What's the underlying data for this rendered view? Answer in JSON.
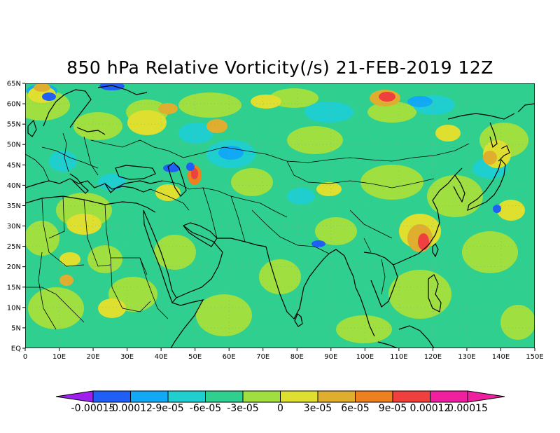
{
  "title": "850 hPa Relative Vorticity(/s) 21-FEB-2019 12Z",
  "map": {
    "projection": "lat-lon",
    "lon_range": [
      0,
      150
    ],
    "lat_range": [
      0,
      65
    ],
    "background_color": "#2fcf8f",
    "lat_ticks": [
      "EQ",
      "5N",
      "10N",
      "15N",
      "20N",
      "25N",
      "30N",
      "35N",
      "40N",
      "45N",
      "50N",
      "55N",
      "60N",
      "65N"
    ],
    "lon_ticks": [
      "0",
      "10E",
      "20E",
      "30E",
      "40E",
      "50E",
      "60E",
      "70E",
      "80E",
      "90E",
      "100E",
      "110E",
      "120E",
      "130E",
      "140E",
      "150E"
    ]
  },
  "colorbar": {
    "labels": [
      "-0.00015",
      "-0.00012",
      "-9e-05",
      "-6e-05",
      "-3e-05",
      "0",
      "3e-05",
      "6e-05",
      "9e-05",
      "0.00012",
      "0.00015"
    ],
    "colors": [
      "#9f1fef",
      "#1f5ff5",
      "#11a9f5",
      "#1fcfcf",
      "#2fcf8f",
      "#9fdf3f",
      "#dfdf2f",
      "#e0ae2f",
      "#ef8020",
      "#f03f3f",
      "#f01fa0"
    ],
    "extend": "both"
  },
  "palette": {
    "c_neg4": "#1f5ff5",
    "c_neg3": "#11a9f5",
    "c_neg2": "#1fcfcf",
    "c_neg1": "#2fcf8f",
    "c_pos1": "#9fdf3f",
    "c_pos2": "#dfdf2f",
    "c_pos3": "#e0ae2f",
    "c_pos4": "#ef8020",
    "c_pos5": "#f03f3f"
  }
}
